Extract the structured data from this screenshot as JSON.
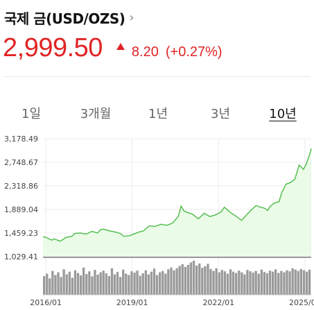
{
  "header": {
    "title": "국제 금(USD/OZS)",
    "chevron": "›"
  },
  "quote": {
    "price": "2,999.50",
    "direction_icon": "triangle-up-icon",
    "change": "8.20",
    "change_pct": "(+0.27%)",
    "color": "#e02424"
  },
  "tabs": [
    {
      "label": "1일",
      "active": false
    },
    {
      "label": "3개월",
      "active": false
    },
    {
      "label": "1년",
      "active": false
    },
    {
      "label": "3년",
      "active": false
    },
    {
      "label": "10년",
      "active": true
    }
  ],
  "chart_data": {
    "type": "area",
    "line_color": "#4cbb47",
    "fill_color": "#eafbe7",
    "y_ticks": [
      "3,178.49",
      "2,748.67",
      "2,318.86",
      "1,889.04",
      "1,459.23",
      "1,029.41"
    ],
    "ylim": [
      1029.41,
      3178.49
    ],
    "x_ticks": [
      "2016/01",
      "2019/01",
      "2022/01",
      "2025/01"
    ],
    "grid": true,
    "series": [
      {
        "values": [
          [
            2015.9,
            1395
          ],
          [
            2016.0,
            1380
          ],
          [
            2016.2,
            1330
          ],
          [
            2016.3,
            1350
          ],
          [
            2016.5,
            1310
          ],
          [
            2016.7,
            1380
          ],
          [
            2016.9,
            1400
          ],
          [
            2017.0,
            1450
          ],
          [
            2017.2,
            1460
          ],
          [
            2017.4,
            1440
          ],
          [
            2017.6,
            1490
          ],
          [
            2017.8,
            1460
          ],
          [
            2017.9,
            1520
          ],
          [
            2018.0,
            1530
          ],
          [
            2018.2,
            1500
          ],
          [
            2018.4,
            1480
          ],
          [
            2018.6,
            1450
          ],
          [
            2018.7,
            1400
          ],
          [
            2018.9,
            1410
          ],
          [
            2019.0,
            1430
          ],
          [
            2019.2,
            1470
          ],
          [
            2019.4,
            1500
          ],
          [
            2019.5,
            1550
          ],
          [
            2019.6,
            1590
          ],
          [
            2019.8,
            1580
          ],
          [
            2020.0,
            1620
          ],
          [
            2020.2,
            1600
          ],
          [
            2020.4,
            1640
          ],
          [
            2020.6,
            1760
          ],
          [
            2020.7,
            1950
          ],
          [
            2020.8,
            1860
          ],
          [
            2020.95,
            1830
          ],
          [
            2021.1,
            1800
          ],
          [
            2021.3,
            1720
          ],
          [
            2021.5,
            1820
          ],
          [
            2021.7,
            1760
          ],
          [
            2021.9,
            1790
          ],
          [
            2022.1,
            1850
          ],
          [
            2022.2,
            1930
          ],
          [
            2022.4,
            1840
          ],
          [
            2022.6,
            1770
          ],
          [
            2022.8,
            1690
          ],
          [
            2022.9,
            1750
          ],
          [
            2023.1,
            1860
          ],
          [
            2023.3,
            1960
          ],
          [
            2023.4,
            1940
          ],
          [
            2023.6,
            1910
          ],
          [
            2023.7,
            1870
          ],
          [
            2023.8,
            1950
          ],
          [
            2023.95,
            2010
          ],
          [
            2024.1,
            2030
          ],
          [
            2024.2,
            2200
          ],
          [
            2024.35,
            2350
          ],
          [
            2024.5,
            2380
          ],
          [
            2024.65,
            2440
          ],
          [
            2024.8,
            2700
          ],
          [
            2024.95,
            2620
          ],
          [
            2025.05,
            2720
          ],
          [
            2025.15,
            2870
          ],
          [
            2025.2,
            2950
          ],
          [
            2025.22,
            2999.5
          ]
        ]
      }
    ],
    "volume": [
      0.55,
      0.62,
      0.48,
      0.7,
      0.58,
      0.66,
      0.52,
      0.75,
      0.6,
      0.68,
      0.5,
      0.72,
      0.64,
      0.57,
      0.8,
      0.61,
      0.69,
      0.54,
      0.73,
      0.59,
      0.66,
      0.71,
      0.63,
      0.55,
      0.78,
      0.6,
      0.67,
      0.52,
      0.74,
      0.62,
      0.58,
      0.69,
      0.65,
      0.71,
      0.56,
      0.63,
      0.72,
      0.6,
      0.68,
      0.77,
      0.58,
      0.66,
      0.7,
      0.62,
      0.75,
      0.8,
      0.72,
      0.78,
      0.85,
      0.9,
      0.82,
      0.88,
      0.95,
      1.0,
      0.86,
      0.92,
      0.79,
      0.84,
      0.91,
      0.76,
      0.7,
      0.78,
      0.66,
      0.73,
      0.69,
      0.62,
      0.75,
      0.68,
      0.64,
      0.71,
      0.66,
      0.6,
      0.73,
      0.69,
      0.65,
      0.7,
      0.62,
      0.74,
      0.67,
      0.63,
      0.71,
      0.68,
      0.75,
      0.64,
      0.7,
      0.66,
      0.72,
      0.69,
      0.78,
      0.74,
      0.7,
      0.76,
      0.72,
      0.68,
      0.74
    ]
  }
}
